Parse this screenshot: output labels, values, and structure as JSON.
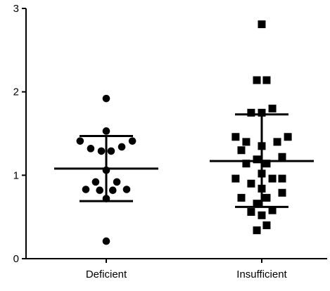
{
  "chart_data": {
    "type": "scatter",
    "subtype": "dot-plot-with-mean-and-sd",
    "title": "",
    "xlabel": "",
    "ylabel": "",
    "categories": [
      "Deficient",
      "Insufficient"
    ],
    "ylim": [
      0,
      3
    ],
    "yticks": [
      0,
      1,
      2,
      3
    ],
    "grid": false,
    "legend": "none",
    "series": [
      {
        "category": "Deficient",
        "marker": "circle",
        "points": [
          {
            "dx": 0.0,
            "y": 1.92
          },
          {
            "dx": 0.0,
            "y": 1.53
          },
          {
            "dx": -0.32,
            "y": 1.41
          },
          {
            "dx": 0.32,
            "y": 1.41
          },
          {
            "dx": -0.19,
            "y": 1.32
          },
          {
            "dx": -0.06,
            "y": 1.29
          },
          {
            "dx": 0.06,
            "y": 1.29
          },
          {
            "dx": 0.19,
            "y": 1.34
          },
          {
            "dx": 0.0,
            "y": 1.06
          },
          {
            "dx": -0.13,
            "y": 0.92
          },
          {
            "dx": 0.13,
            "y": 0.92
          },
          {
            "dx": -0.25,
            "y": 0.83
          },
          {
            "dx": -0.08,
            "y": 0.82
          },
          {
            "dx": 0.08,
            "y": 0.82
          },
          {
            "dx": 0.25,
            "y": 0.83
          },
          {
            "dx": 0.0,
            "y": 0.72
          },
          {
            "dx": 0.0,
            "y": 0.21
          }
        ],
        "mean": 1.08,
        "sd_upper": 1.47,
        "sd_lower": 0.69
      },
      {
        "category": "Insufficient",
        "marker": "square",
        "points": [
          {
            "dx": 0.0,
            "y": 2.81
          },
          {
            "dx": -0.06,
            "y": 2.14
          },
          {
            "dx": 0.06,
            "y": 2.14
          },
          {
            "dx": 0.13,
            "y": 1.8
          },
          {
            "dx": -0.13,
            "y": 1.75
          },
          {
            "dx": 0.0,
            "y": 1.75
          },
          {
            "dx": -0.32,
            "y": 1.46
          },
          {
            "dx": 0.32,
            "y": 1.46
          },
          {
            "dx": -0.19,
            "y": 1.4
          },
          {
            "dx": 0.19,
            "y": 1.4
          },
          {
            "dx": 0.0,
            "y": 1.35
          },
          {
            "dx": -0.25,
            "y": 1.3
          },
          {
            "dx": 0.25,
            "y": 1.22
          },
          {
            "dx": -0.06,
            "y": 1.19
          },
          {
            "dx": -0.19,
            "y": 1.14
          },
          {
            "dx": 0.06,
            "y": 1.14
          },
          {
            "dx": 0.0,
            "y": 1.02
          },
          {
            "dx": -0.32,
            "y": 0.96
          },
          {
            "dx": 0.13,
            "y": 0.96
          },
          {
            "dx": 0.25,
            "y": 0.96
          },
          {
            "dx": -0.13,
            "y": 0.9
          },
          {
            "dx": 0.0,
            "y": 0.84
          },
          {
            "dx": 0.25,
            "y": 0.79
          },
          {
            "dx": -0.25,
            "y": 0.73
          },
          {
            "dx": 0.06,
            "y": 0.73
          },
          {
            "dx": -0.06,
            "y": 0.66
          },
          {
            "dx": 0.13,
            "y": 0.58
          },
          {
            "dx": -0.13,
            "y": 0.56
          },
          {
            "dx": 0.0,
            "y": 0.52
          },
          {
            "dx": 0.06,
            "y": 0.4
          },
          {
            "dx": -0.06,
            "y": 0.34
          }
        ],
        "mean": 1.17,
        "sd_upper": 1.73,
        "sd_lower": 0.62
      }
    ],
    "colors": {
      "marker": "#000000",
      "axis": "#000000"
    }
  }
}
